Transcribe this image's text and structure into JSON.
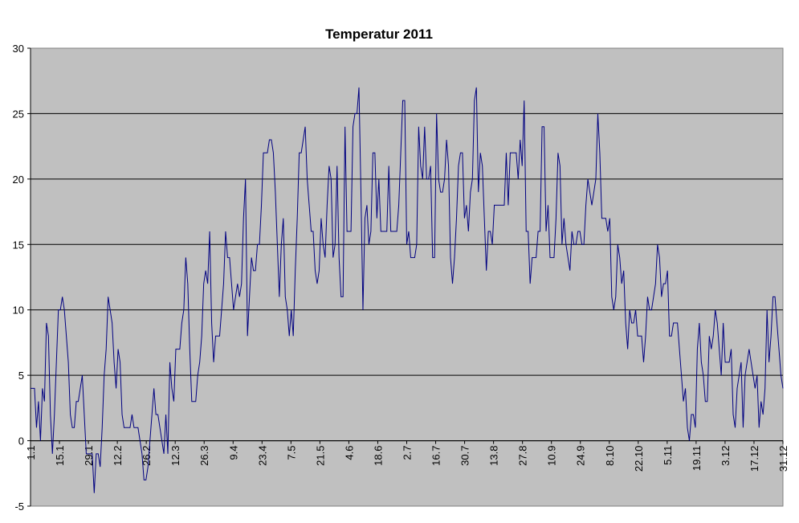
{
  "chart_data": {
    "type": "line",
    "title": "Temperatur 2011",
    "xlabel": "",
    "ylabel": "",
    "ylim": [
      -5,
      30
    ],
    "yticks": [
      "30",
      "25",
      "20",
      "15",
      "10",
      "5",
      "0",
      "-5"
    ],
    "grid": true,
    "legend": "none",
    "colors": {
      "plot_bg": "#c0c0c0",
      "line": "#000080",
      "grid": "#000000"
    },
    "xticks": [
      "1.1",
      "15.1",
      "29.1",
      "12.2",
      "26.2",
      "12.3",
      "26.3",
      "9.4",
      "23.4",
      "7.5",
      "21.5",
      "4.6",
      "18.6",
      "2.7",
      "16.7",
      "30.7",
      "13.8",
      "27.8",
      "10.9",
      "24.9",
      "8.10",
      "22.10",
      "5.11",
      "19.11",
      "3.12",
      "17.12",
      "31.12"
    ],
    "series": [
      {
        "x_start": "1.1",
        "x_end": "31.12",
        "values": [
          4,
          4,
          4,
          1,
          3,
          0,
          4,
          3,
          9,
          8,
          2,
          -1,
          2,
          6,
          10,
          10,
          11,
          10,
          8,
          6,
          2,
          1,
          1,
          3,
          3,
          4,
          5,
          2,
          -1,
          -1,
          -1,
          -1,
          -4,
          -1,
          -1,
          -2,
          1,
          5,
          7,
          11,
          10,
          9,
          6,
          4,
          7,
          6,
          2,
          1,
          1,
          1,
          1,
          2,
          1,
          1,
          1,
          0,
          -1,
          -3,
          -3,
          -2,
          0,
          2,
          4,
          2,
          2,
          1,
          0,
          -1,
          2,
          -1,
          6,
          4,
          3,
          7,
          7,
          7,
          9,
          10,
          14,
          12,
          7,
          3,
          3,
          3,
          5,
          6,
          8,
          12,
          13,
          12,
          16,
          9,
          6,
          8,
          8,
          8,
          10,
          12,
          16,
          14,
          14,
          12,
          10,
          11,
          12,
          11,
          12,
          17,
          20,
          8,
          11,
          14,
          13,
          13,
          15,
          15,
          18,
          22,
          22,
          22,
          23,
          23,
          22,
          19,
          15,
          11,
          15,
          17,
          11,
          10,
          8,
          10,
          8,
          13,
          17,
          22,
          22,
          23,
          24,
          20,
          18,
          16,
          16,
          13,
          12,
          13,
          17,
          15,
          14,
          18,
          21,
          20,
          14,
          15,
          21,
          14,
          11,
          11,
          24,
          16,
          16,
          16,
          24,
          25,
          25,
          27,
          19,
          10,
          17,
          18,
          15,
          16,
          22,
          22,
          17,
          20,
          16,
          16,
          16,
          16,
          21,
          16,
          16,
          16,
          16,
          18,
          22,
          26,
          26,
          15,
          16,
          14,
          14,
          14,
          15,
          24,
          21,
          20,
          24,
          20,
          20,
          21,
          14,
          14,
          25,
          20,
          19,
          19,
          20,
          23,
          21,
          14,
          12,
          14,
          17,
          21,
          22,
          22,
          17,
          18,
          16,
          19,
          20,
          26,
          27,
          19,
          22,
          21,
          17,
          13,
          16,
          16,
          15,
          18,
          18,
          18,
          18,
          18,
          18,
          22,
          18,
          22,
          22,
          22,
          22,
          20,
          23,
          21,
          26,
          16,
          16,
          12,
          14,
          14,
          14,
          16,
          16,
          24,
          24,
          16,
          18,
          14,
          14,
          14,
          17,
          22,
          21,
          15,
          17,
          15,
          14,
          13,
          16,
          15,
          15,
          16,
          16,
          15,
          15,
          18,
          20,
          19,
          18,
          19,
          20,
          25,
          22,
          17,
          17,
          17,
          16,
          17,
          11,
          10,
          11,
          15,
          14,
          12,
          13,
          9,
          7,
          10,
          9,
          9,
          10,
          8,
          8,
          8,
          6,
          8,
          11,
          10,
          10,
          11,
          12,
          15,
          14,
          11,
          12,
          12,
          13,
          8,
          8,
          9,
          9,
          9,
          7,
          5,
          3,
          4,
          1,
          0,
          2,
          2,
          1,
          7,
          9,
          6,
          5,
          3,
          3,
          8,
          7,
          8,
          10,
          9,
          7,
          5,
          9,
          6,
          6,
          6,
          7,
          2,
          1,
          4,
          5,
          6,
          1,
          5,
          6,
          7,
          6,
          5,
          4,
          5,
          1,
          3,
          2,
          4,
          10,
          6,
          8,
          11,
          11,
          9,
          7,
          5,
          4
        ]
      }
    ]
  }
}
